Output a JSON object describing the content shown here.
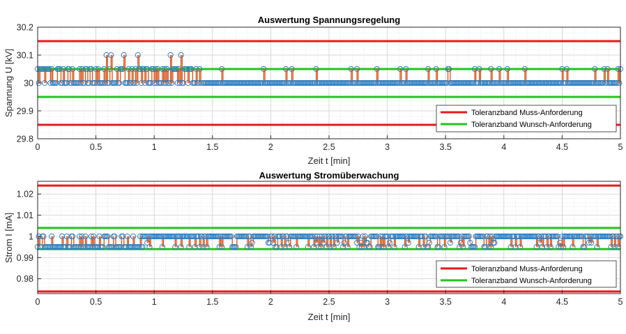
{
  "chart_data": [
    {
      "type": "line",
      "title": "Auswertung Spannungsregelung",
      "xlabel": "Zeit t [min]",
      "ylabel": "Spannung U [kV]",
      "xlim": [
        0,
        5
      ],
      "ylim": [
        29.8,
        30.2
      ],
      "xticks": [
        0,
        0.5,
        1,
        1.5,
        2,
        2.5,
        3,
        3.5,
        4,
        4.5,
        5
      ],
      "xtick_labels": [
        "0",
        "0.5",
        "1",
        "1.5",
        "2",
        "2.5",
        "3",
        "3.5",
        "4",
        "4.5",
        "5"
      ],
      "yticks": [
        29.8,
        29.9,
        30,
        30.1,
        30.2
      ],
      "ytick_labels": [
        "29.8",
        "29.9",
        "30",
        "30.1",
        "30.2"
      ],
      "grid": "major and minor",
      "legend": "bottom-right",
      "series": [
        {
          "name": "Toleranzband Muss-Anforderung",
          "color": "#e8191d",
          "values": [
            29.85,
            30.15
          ]
        },
        {
          "name": "Toleranzband Wunsch-Anforderung",
          "color": "#22c41e",
          "values": [
            29.95,
            30.05
          ]
        }
      ],
      "measurement": {
        "marker_color": "#2f7ec0",
        "stem_color": "#d95319",
        "baseline": 30.0,
        "levels": [
          30.0,
          30.05,
          30.1
        ],
        "segments": [
          {
            "from": 0,
            "to": 1.4,
            "baseline": 30.05,
            "alt": 30.0,
            "prob": 0.55,
            "peak": 30.1,
            "peak_prob": 0.06,
            "step": 0.01
          },
          {
            "from": 1.42,
            "to": 5,
            "baseline": 30.0,
            "alt": 30.05,
            "prob": 0.07,
            "peak": null,
            "peak_prob": 0,
            "step": 0.01
          }
        ]
      }
    },
    {
      "type": "line",
      "title": "Auswertung Stromüberwachung",
      "xlabel": "Zeit t [min]",
      "ylabel": "Strom I [mA]",
      "xlim": [
        0,
        5
      ],
      "ylim": [
        0.973,
        1.026
      ],
      "xticks": [
        0,
        0.5,
        1,
        1.5,
        2,
        2.5,
        3,
        3.5,
        4,
        4.5,
        5
      ],
      "xtick_labels": [
        "0",
        "0.5",
        "1",
        "1.5",
        "2",
        "2.5",
        "3",
        "3.5",
        "4",
        "4.5",
        "5"
      ],
      "yticks": [
        0.98,
        0.99,
        1.0,
        1.01,
        1.02
      ],
      "ytick_labels": [
        "0.98",
        "0.99",
        "1",
        "1.01",
        "1.02"
      ],
      "grid": "major and minor",
      "legend": "bottom-right",
      "series": [
        {
          "name": "Toleranzband Muss-Anforderung",
          "color": "#e8191d",
          "values": [
            0.974,
            1.024
          ]
        },
        {
          "name": "Toleranzband Wunsch-Anforderung",
          "color": "#22c41e",
          "values": [
            0.994,
            1.004
          ]
        }
      ],
      "measurement": {
        "marker_color": "#2f7ec0",
        "stem_color": "#d95319",
        "levels": [
          0.995,
          0.997,
          1.0
        ],
        "segments": [
          {
            "from": 0,
            "to": 0.9,
            "baseline": 0.995,
            "alt": 1.0,
            "prob": 0.3,
            "peak": null,
            "peak_prob": 0,
            "step": 0.01
          },
          {
            "from": 0.9,
            "to": 5,
            "baseline": 1.0,
            "alt": 0.995,
            "prob": 0.2,
            "peak": 0.997,
            "peak_prob": 0.05,
            "step": 0.01
          }
        ]
      }
    }
  ]
}
